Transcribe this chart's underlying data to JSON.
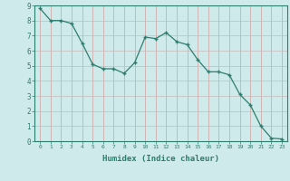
{
  "x": [
    0,
    1,
    2,
    3,
    4,
    5,
    6,
    7,
    8,
    9,
    10,
    11,
    12,
    13,
    14,
    15,
    16,
    17,
    18,
    19,
    20,
    21,
    22,
    23
  ],
  "y": [
    8.8,
    8.0,
    8.0,
    7.8,
    6.5,
    5.1,
    4.8,
    4.8,
    4.5,
    5.2,
    6.9,
    6.8,
    7.2,
    6.6,
    6.4,
    5.4,
    4.6,
    4.6,
    4.4,
    3.1,
    2.4,
    1.0,
    0.2,
    0.15
  ],
  "line_color": "#2d7d6f",
  "marker": "+",
  "marker_size": 3,
  "xlabel": "Humidex (Indice chaleur)",
  "xlim": [
    -0.5,
    23.5
  ],
  "ylim": [
    0,
    9
  ],
  "yticks": [
    0,
    1,
    2,
    3,
    4,
    5,
    6,
    7,
    8,
    9
  ],
  "xticks": [
    0,
    1,
    2,
    3,
    4,
    5,
    6,
    7,
    8,
    9,
    10,
    11,
    12,
    13,
    14,
    15,
    16,
    17,
    18,
    19,
    20,
    21,
    22,
    23
  ],
  "bg_color": "#ceeaea",
  "grid_color": "#b8d4d4",
  "axes_color": "#2d7d6f",
  "tick_color": "#2d7d6f",
  "label_color": "#2d7d6f",
  "font_family": "monospace"
}
